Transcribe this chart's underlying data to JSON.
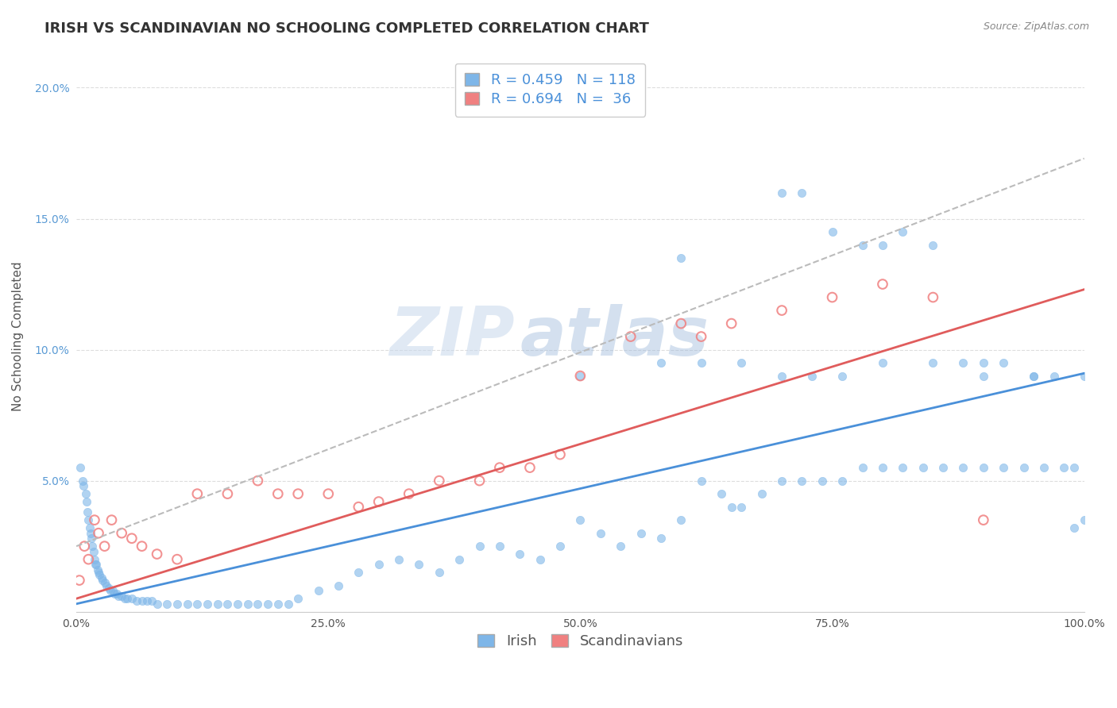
{
  "title": "IRISH VS SCANDINAVIAN NO SCHOOLING COMPLETED CORRELATION CHART",
  "source": "Source: ZipAtlas.com",
  "ylabel": "No Schooling Completed",
  "xlim": [
    0,
    100
  ],
  "ylim": [
    0,
    21
  ],
  "yticks": [
    0,
    5,
    10,
    15,
    20
  ],
  "ytick_labels": [
    "",
    "5.0%",
    "10.0%",
    "15.0%",
    "20.0%"
  ],
  "xticks": [
    0,
    25,
    50,
    75,
    100
  ],
  "xtick_labels": [
    "0.0%",
    "25.0%",
    "50.0%",
    "75.0%",
    "100.0%"
  ],
  "irish_R": 0.459,
  "irish_N": 118,
  "scand_R": 0.694,
  "scand_N": 36,
  "irish_color": "#7EB6E8",
  "scand_color": "#F08080",
  "irish_line_color": "#4A90D9",
  "scand_line_color": "#E05C5C",
  "irish_line_slope": 0.088,
  "irish_line_intercept": 0.3,
  "scand_line_slope": 0.118,
  "scand_line_intercept": 0.5,
  "gray_line_slope": 0.148,
  "gray_line_intercept": 2.5,
  "irish_scatter_x": [
    0.4,
    0.6,
    0.7,
    0.9,
    1.0,
    1.1,
    1.2,
    1.3,
    1.4,
    1.5,
    1.6,
    1.7,
    1.8,
    1.9,
    2.0,
    2.1,
    2.2,
    2.3,
    2.5,
    2.6,
    2.8,
    3.0,
    3.2,
    3.4,
    3.6,
    3.8,
    4.0,
    4.2,
    4.5,
    4.8,
    5.0,
    5.5,
    6.0,
    6.5,
    7.0,
    7.5,
    8.0,
    9.0,
    10.0,
    11.0,
    12.0,
    13.0,
    14.0,
    15.0,
    16.0,
    17.0,
    18.0,
    19.0,
    20.0,
    21.0,
    22.0,
    24.0,
    26.0,
    28.0,
    30.0,
    32.0,
    34.0,
    36.0,
    38.0,
    40.0,
    42.0,
    44.0,
    46.0,
    48.0,
    50.0,
    52.0,
    54.0,
    56.0,
    58.0,
    60.0,
    62.0,
    64.0,
    65.0,
    66.0,
    68.0,
    70.0,
    72.0,
    74.0,
    76.0,
    78.0,
    80.0,
    82.0,
    84.0,
    86.0,
    88.0,
    90.0,
    92.0,
    94.0,
    96.0,
    98.0,
    99.0,
    100.0,
    60.0,
    70.0,
    72.0,
    75.0,
    78.0,
    80.0,
    82.0,
    85.0,
    88.0,
    90.0,
    92.0,
    95.0,
    97.0,
    100.0,
    50.0,
    58.0,
    62.0,
    66.0,
    70.0,
    73.0,
    76.0,
    80.0,
    85.0,
    90.0,
    95.0,
    99.0
  ],
  "irish_scatter_y": [
    5.5,
    5.0,
    4.8,
    4.5,
    4.2,
    3.8,
    3.5,
    3.2,
    3.0,
    2.8,
    2.5,
    2.3,
    2.0,
    1.8,
    1.8,
    1.6,
    1.5,
    1.4,
    1.3,
    1.2,
    1.1,
    1.0,
    0.9,
    0.8,
    0.8,
    0.7,
    0.7,
    0.6,
    0.6,
    0.5,
    0.5,
    0.5,
    0.4,
    0.4,
    0.4,
    0.4,
    0.3,
    0.3,
    0.3,
    0.3,
    0.3,
    0.3,
    0.3,
    0.3,
    0.3,
    0.3,
    0.3,
    0.3,
    0.3,
    0.3,
    0.5,
    0.8,
    1.0,
    1.5,
    1.8,
    2.0,
    1.8,
    1.5,
    2.0,
    2.5,
    2.5,
    2.2,
    2.0,
    2.5,
    3.5,
    3.0,
    2.5,
    3.0,
    2.8,
    3.5,
    5.0,
    4.5,
    4.0,
    4.0,
    4.5,
    5.0,
    5.0,
    5.0,
    5.0,
    5.5,
    5.5,
    5.5,
    5.5,
    5.5,
    5.5,
    5.5,
    5.5,
    5.5,
    5.5,
    5.5,
    5.5,
    9.0,
    13.5,
    16.0,
    16.0,
    14.5,
    14.0,
    14.0,
    14.5,
    14.0,
    9.5,
    9.5,
    9.5,
    9.0,
    9.0,
    3.5,
    9.0,
    9.5,
    9.5,
    9.5,
    9.0,
    9.0,
    9.0,
    9.5,
    9.5,
    9.0,
    9.0,
    3.2
  ],
  "scand_scatter_x": [
    0.3,
    0.8,
    1.2,
    1.8,
    2.2,
    2.8,
    3.5,
    4.5,
    5.5,
    6.5,
    8.0,
    10.0,
    12.0,
    15.0,
    18.0,
    20.0,
    22.0,
    25.0,
    28.0,
    30.0,
    33.0,
    36.0,
    40.0,
    42.0,
    45.0,
    48.0,
    50.0,
    55.0,
    60.0,
    62.0,
    65.0,
    70.0,
    75.0,
    80.0,
    85.0,
    90.0
  ],
  "scand_scatter_y": [
    1.2,
    2.5,
    2.0,
    3.5,
    3.0,
    2.5,
    3.5,
    3.0,
    2.8,
    2.5,
    2.2,
    2.0,
    4.5,
    4.5,
    5.0,
    4.5,
    4.5,
    4.5,
    4.0,
    4.2,
    4.5,
    5.0,
    5.0,
    5.5,
    5.5,
    6.0,
    9.0,
    10.5,
    11.0,
    10.5,
    11.0,
    11.5,
    12.0,
    12.5,
    12.0,
    3.5
  ],
  "watermark_zip": "ZIP",
  "watermark_atlas": "atlas",
  "background_color": "#FFFFFF",
  "grid_color": "#DDDDDD",
  "title_fontsize": 13,
  "axis_label_fontsize": 11,
  "tick_fontsize": 10,
  "legend_fontsize": 13
}
